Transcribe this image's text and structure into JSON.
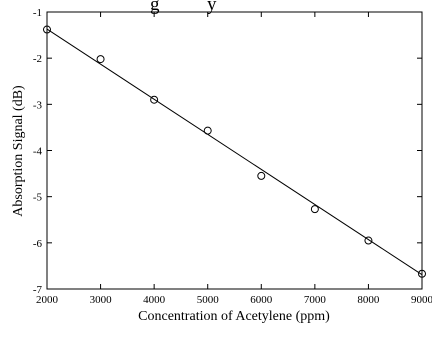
{
  "title_fragment": "g          y",
  "chart_data": {
    "type": "scatter",
    "xlabel": "Concentration of Acetylene (ppm)",
    "ylabel": "Absorption Signal (dB)",
    "xlim": [
      2000,
      9000
    ],
    "ylim": [
      -7,
      -1
    ],
    "x_ticks": [
      2000,
      3000,
      4000,
      5000,
      6000,
      7000,
      8000,
      9000
    ],
    "y_ticks": [
      -1,
      -2,
      -3,
      -4,
      -5,
      -6,
      -7
    ],
    "grid": false,
    "series": [
      {
        "marker": "circle-open",
        "x": [
          2000,
          3000,
          4000,
          5000,
          6000,
          7000,
          8000,
          9000
        ],
        "y": [
          -1.38,
          -2.02,
          -2.9,
          -3.57,
          -4.55,
          -5.27,
          -5.95,
          -6.67
        ]
      }
    ],
    "fit_line": {
      "x": [
        2000,
        9000
      ],
      "y": [
        -1.37,
        -6.69
      ]
    },
    "colors": {
      "marker": "#000000",
      "line": "#000000",
      "axes": "#000000"
    }
  }
}
